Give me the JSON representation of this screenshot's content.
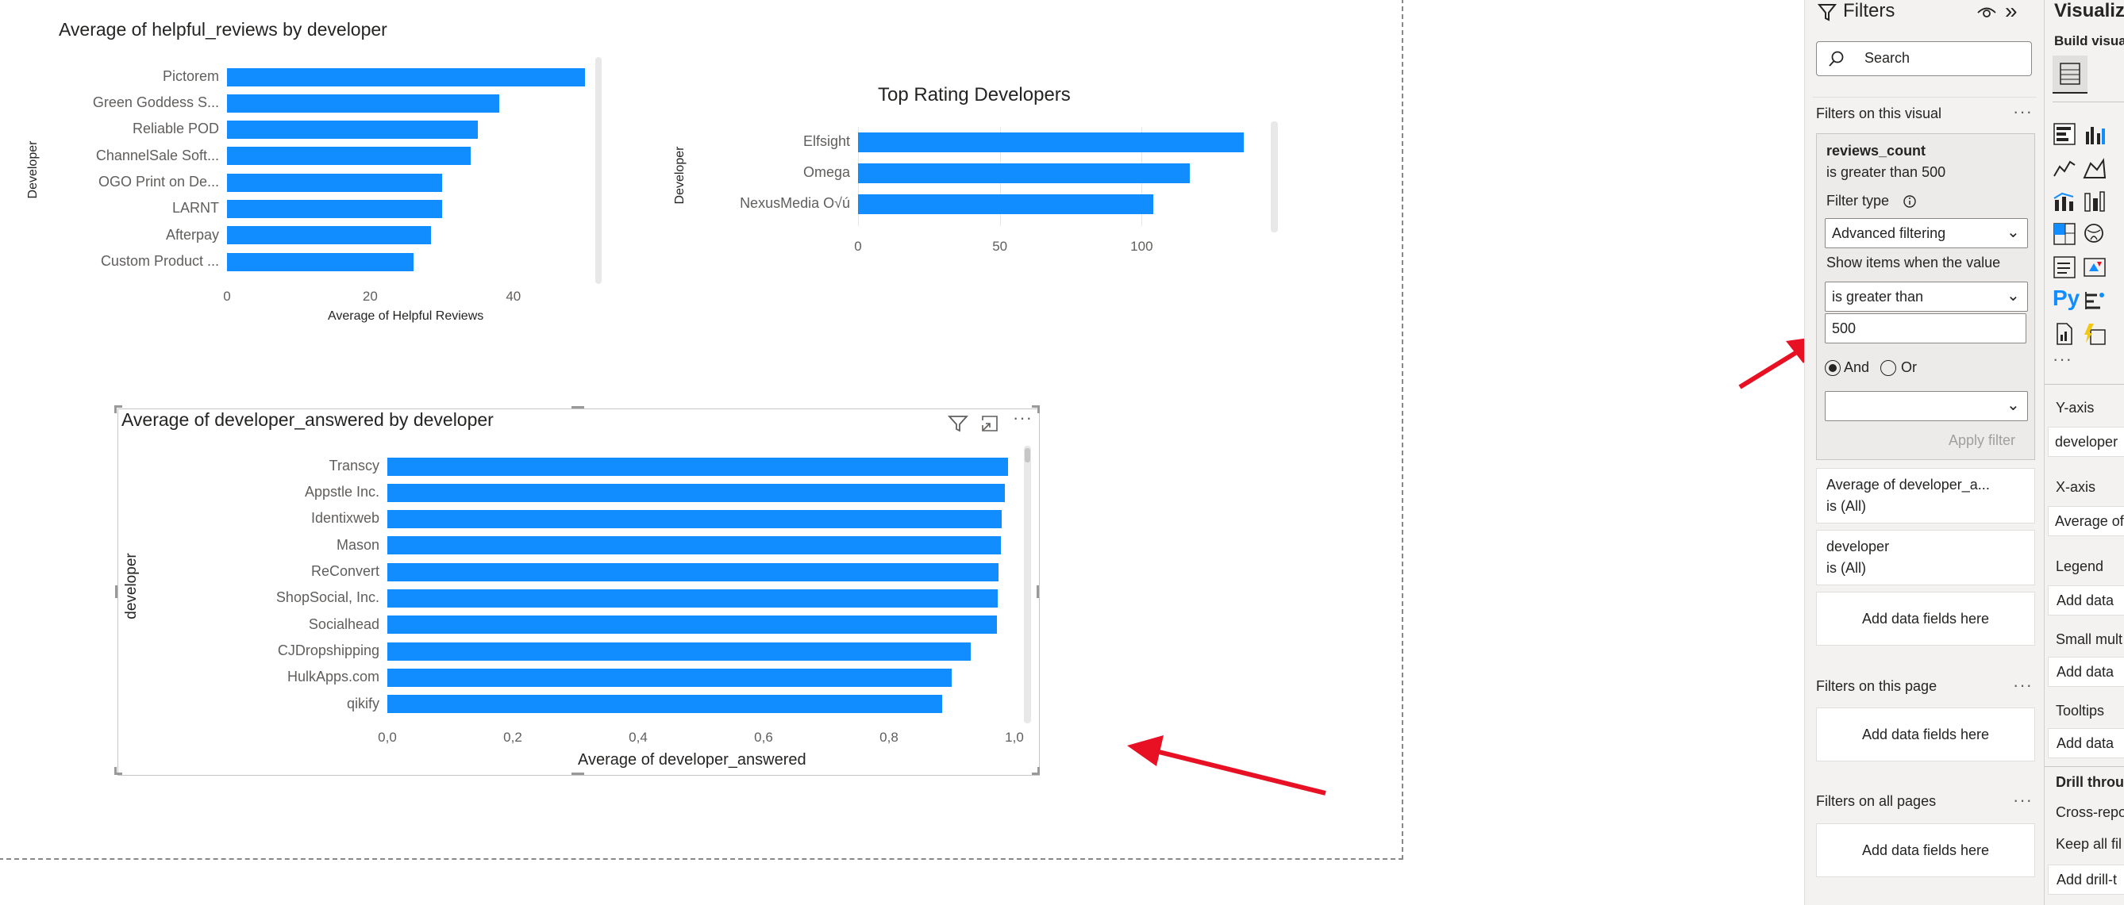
{
  "chart1": {
    "title": "Average of helpful_reviews by developer",
    "ylabel": "Developer",
    "xlabel": "Average of Helpful Reviews",
    "ticks": [
      "0",
      "20",
      "40"
    ]
  },
  "chart2": {
    "title": "Top Rating Developers",
    "ylabel": "Developer",
    "ticks": [
      "0",
      "50",
      "100"
    ]
  },
  "chart3": {
    "title": "Average of developer_answered by developer",
    "ylabel": "developer",
    "xlabel": "Average of developer_answered",
    "ticks": [
      "0,0",
      "0,2",
      "0,4",
      "0,6",
      "0,8",
      "1,0"
    ]
  },
  "chart_data": [
    {
      "type": "bar",
      "orientation": "horizontal",
      "title": "Average of helpful_reviews by developer",
      "ylabel": "Developer",
      "xlabel": "Average of Helpful Reviews",
      "categories": [
        "Pictorem",
        "Green Goddess S...",
        "Reliable POD",
        "ChannelSale Soft...",
        "OGO Print on De...",
        "LARNT",
        "Afterpay",
        "Custom Product ..."
      ],
      "values": [
        50,
        38,
        35,
        34,
        30,
        30,
        28.5,
        26
      ],
      "xlim": [
        0,
        50
      ],
      "color": "#118dff"
    },
    {
      "type": "bar",
      "orientation": "horizontal",
      "title": "Top Rating Developers",
      "ylabel": "Developer",
      "categories": [
        "Elfsight",
        "Omega",
        "NexusMedia O√ú"
      ],
      "values": [
        136,
        117,
        104
      ],
      "xlim": [
        0,
        136
      ],
      "color": "#118dff"
    },
    {
      "type": "bar",
      "orientation": "horizontal",
      "title": "Average of developer_answered by developer",
      "ylabel": "developer",
      "xlabel": "Average of developer_answered",
      "categories": [
        "Transcy",
        "Appstle Inc.",
        "Identixweb",
        "Mason",
        "ReConvert",
        "ShopSocial, Inc.",
        "Socialhead",
        "CJDropshipping",
        "HulkApps.com",
        "qikify"
      ],
      "values": [
        0.99,
        0.985,
        0.98,
        0.978,
        0.975,
        0.973,
        0.972,
        0.93,
        0.9,
        0.885
      ],
      "xlim": [
        0,
        1.0
      ],
      "color": "#118dff"
    }
  ],
  "filters": {
    "title": "Filters",
    "search_placeholder": "Search",
    "on_visual_label": "Filters on this visual",
    "active_card": {
      "field": "reviews_count",
      "summary": "is greater than 500",
      "filter_type_label": "Filter type",
      "filter_type_value": "Advanced filtering",
      "show_items_label": "Show items when the value",
      "condition_value": "is greater than",
      "input_value": "500",
      "and_label": "And",
      "or_label": "Or",
      "apply_label": "Apply filter"
    },
    "card2": {
      "field": "Average of developer_a...",
      "summary": "is (All)"
    },
    "card3": {
      "field": "developer",
      "summary": "is (All)"
    },
    "add_fields_label": "Add data fields here",
    "on_page_label": "Filters on this page",
    "on_all_pages_label": "Filters on all pages"
  },
  "viz": {
    "title": "Visualiza",
    "build_label": "Build visua",
    "yaxis_label": "Y-axis",
    "yaxis_field": "developer",
    "xaxis_label": "X-axis",
    "xaxis_field": "Average of",
    "legend_label": "Legend",
    "add_data": "Add data",
    "small_multiples_label": "Small mult",
    "tooltips_label": "Tooltips",
    "drill_label": "Drill throu",
    "cross_report_label": "Cross-repo",
    "keep_all_label": "Keep all fil",
    "add_drill_label": "Add drill-t",
    "py_label": "Py"
  },
  "colors": {
    "bar": "#118dff",
    "arrow": "#e81123"
  }
}
